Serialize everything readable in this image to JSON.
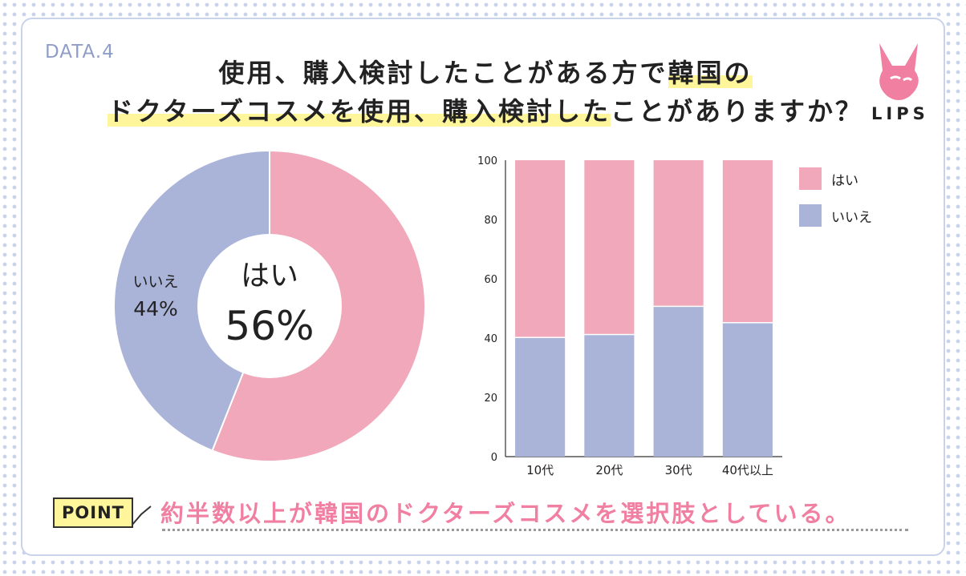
{
  "header": {
    "data_label": "DATA.4",
    "title_line1_pre": "使用、購入検討したことがある方で",
    "title_line1_hl": "韓国の",
    "title_line2_hl": "ドクターズコスメを使用、購入検討した",
    "title_line2_post": "ことがありますか？",
    "logo_text": "LIPS"
  },
  "colors": {
    "yes": "#f0a8ba",
    "no": "#aab3d8",
    "accent": "#f07fa1",
    "highlight": "#fff59a"
  },
  "chart_data": [
    {
      "type": "pie",
      "title": "",
      "categories": [
        "はい",
        "いいえ"
      ],
      "values": [
        56,
        44
      ],
      "center_label": "はい",
      "center_value": "56%",
      "side_label": "いいえ",
      "side_value": "44%"
    },
    {
      "type": "bar",
      "stacked": true,
      "categories": [
        "10代",
        "20代",
        "30代",
        "40代以上"
      ],
      "series": [
        {
          "name": "いいえ",
          "values": [
            40,
            41,
            50.5,
            45
          ]
        },
        {
          "name": "はい",
          "values": [
            60,
            59,
            49.5,
            55
          ]
        }
      ],
      "ylim": [
        0,
        100
      ],
      "yticks": [
        "0",
        "20",
        "40",
        "60",
        "80",
        "100"
      ],
      "legend": [
        "はい",
        "いいえ"
      ],
      "legend_position": "top-right"
    }
  ],
  "point": {
    "label": "POINT",
    "text": "約半数以上が韓国のドクターズコスメを選択肢としている。"
  }
}
